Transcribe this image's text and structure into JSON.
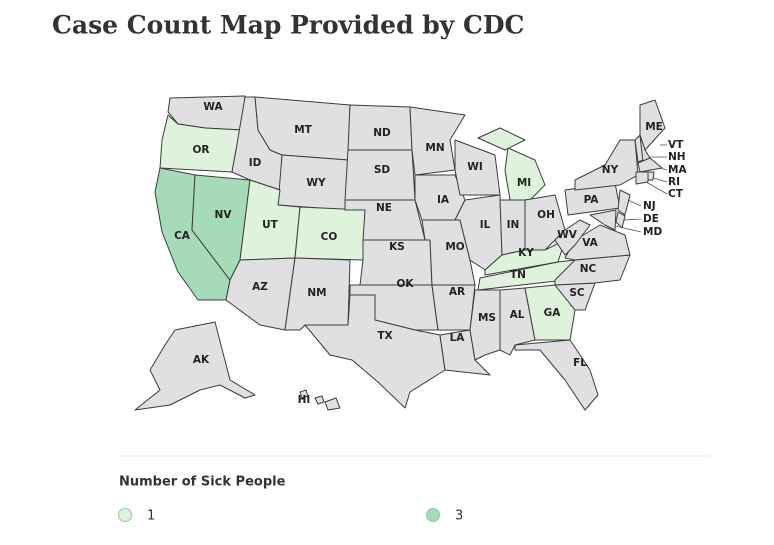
{
  "title": "Case Count Map Provided by CDC",
  "legend": {
    "title": "Number of Sick People",
    "items": [
      {
        "value": 1,
        "color": "#dff3dc"
      },
      {
        "value": 3,
        "color": "#a6dbb9"
      }
    ]
  },
  "default_color": "#e0e0e2",
  "states": [
    {
      "label": "WA"
    },
    {
      "label": "OR",
      "cases": 1
    },
    {
      "label": "CA",
      "cases": 3
    },
    {
      "label": "NV",
      "cases": 3
    },
    {
      "label": "ID"
    },
    {
      "label": "MT"
    },
    {
      "label": "WY"
    },
    {
      "label": "UT",
      "cases": 1
    },
    {
      "label": "CO",
      "cases": 1
    },
    {
      "label": "AZ"
    },
    {
      "label": "NM"
    },
    {
      "label": "ND"
    },
    {
      "label": "SD"
    },
    {
      "label": "NE"
    },
    {
      "label": "KS"
    },
    {
      "label": "OK"
    },
    {
      "label": "TX"
    },
    {
      "label": "MN"
    },
    {
      "label": "IA"
    },
    {
      "label": "MO"
    },
    {
      "label": "AR"
    },
    {
      "label": "LA"
    },
    {
      "label": "WI"
    },
    {
      "label": "IL"
    },
    {
      "label": "MI",
      "cases": 1
    },
    {
      "label": "IN"
    },
    {
      "label": "OH"
    },
    {
      "label": "KY",
      "cases": 1
    },
    {
      "label": "TN",
      "cases": 1
    },
    {
      "label": "MS"
    },
    {
      "label": "AL"
    },
    {
      "label": "GA",
      "cases": 1
    },
    {
      "label": "FL"
    },
    {
      "label": "SC"
    },
    {
      "label": "NC"
    },
    {
      "label": "VA"
    },
    {
      "label": "WV"
    },
    {
      "label": "PA"
    },
    {
      "label": "NY"
    },
    {
      "label": "ME"
    },
    {
      "label": "VT"
    },
    {
      "label": "NH"
    },
    {
      "label": "MA"
    },
    {
      "label": "RI"
    },
    {
      "label": "CT"
    },
    {
      "label": "NJ"
    },
    {
      "label": "DE"
    },
    {
      "label": "MD"
    },
    {
      "label": "AK"
    },
    {
      "label": "HI"
    }
  ]
}
